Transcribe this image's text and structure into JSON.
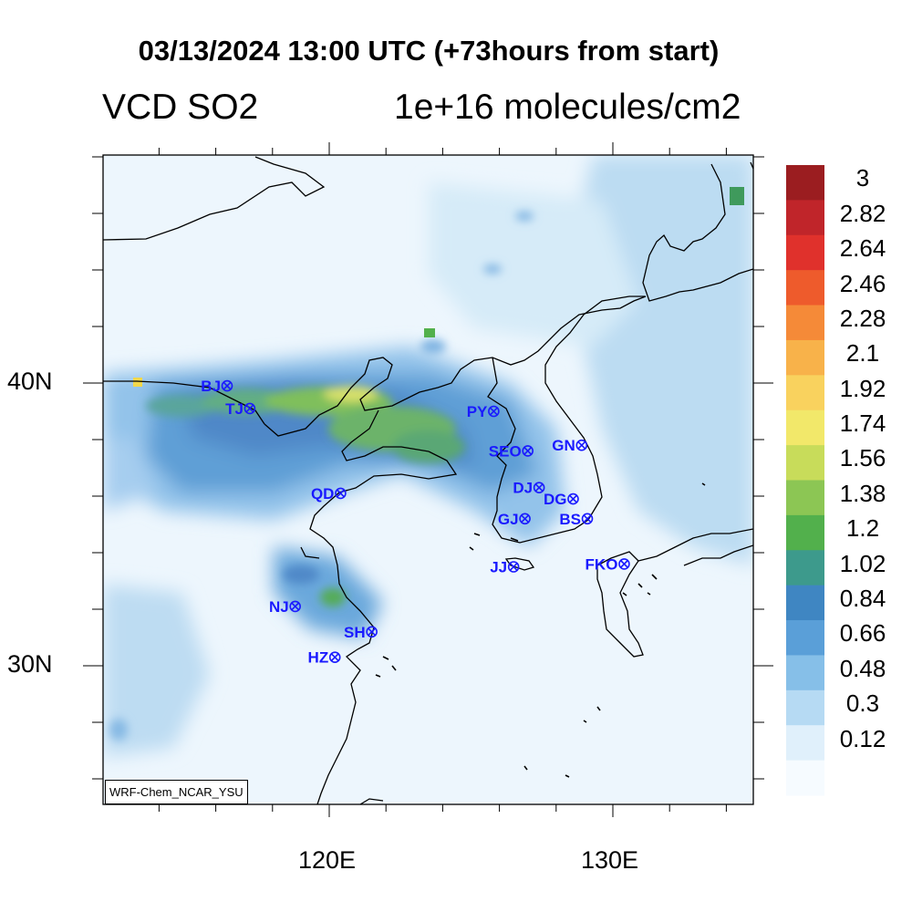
{
  "title": "03/13/2024 13:00 UTC (+73hours from start)",
  "variable": "VCD SO2",
  "units": "1e+16 molecules/cm2",
  "credit": "WRF-Chem_NCAR_YSU",
  "axes": {
    "lat_labels": [
      "40N",
      "30N"
    ],
    "lon_labels": [
      "120E",
      "130E"
    ]
  },
  "colorbar": {
    "labels": [
      "3",
      "2.82",
      "2.64",
      "2.46",
      "2.28",
      "2.1",
      "1.92",
      "1.74",
      "1.56",
      "1.38",
      "1.2",
      "1.02",
      "0.84",
      "0.66",
      "0.48",
      "0.3",
      "0.12"
    ],
    "colors": [
      "#9b1d20",
      "#c0252a",
      "#e0312c",
      "#ee5b2c",
      "#f58a38",
      "#f8b24a",
      "#f9d25e",
      "#f2e86a",
      "#c8dc5a",
      "#8cc654",
      "#52b04c",
      "#3d9a8c",
      "#3f86c2",
      "#5a9fd8",
      "#86bfe8",
      "#b6daf3",
      "#e0f0fb",
      "#f6fbff"
    ],
    "min": 0.12,
    "max": 3
  },
  "cities": [
    {
      "code": "BJ",
      "lon": 116.4,
      "lat": 39.9
    },
    {
      "code": "TJ",
      "lon": 117.2,
      "lat": 39.1
    },
    {
      "code": "PY",
      "lon": 125.8,
      "lat": 39.0
    },
    {
      "code": "SEO",
      "lon": 127.0,
      "lat": 37.6
    },
    {
      "code": "GN",
      "lon": 128.9,
      "lat": 37.8
    },
    {
      "code": "QD",
      "lon": 120.4,
      "lat": 36.1
    },
    {
      "code": "DJ",
      "lon": 127.4,
      "lat": 36.3
    },
    {
      "code": "DG",
      "lon": 128.6,
      "lat": 35.9
    },
    {
      "code": "GJ",
      "lon": 126.9,
      "lat": 35.2
    },
    {
      "code": "BS",
      "lon": 129.1,
      "lat": 35.2
    },
    {
      "code": "JJ",
      "lon": 126.5,
      "lat": 33.5
    },
    {
      "code": "FKO",
      "lon": 130.4,
      "lat": 33.6
    },
    {
      "code": "NJ",
      "lon": 118.8,
      "lat": 32.1
    },
    {
      "code": "SH",
      "lon": 121.5,
      "lat": 31.2
    },
    {
      "code": "HZ",
      "lon": 120.2,
      "lat": 30.3
    }
  ]
}
